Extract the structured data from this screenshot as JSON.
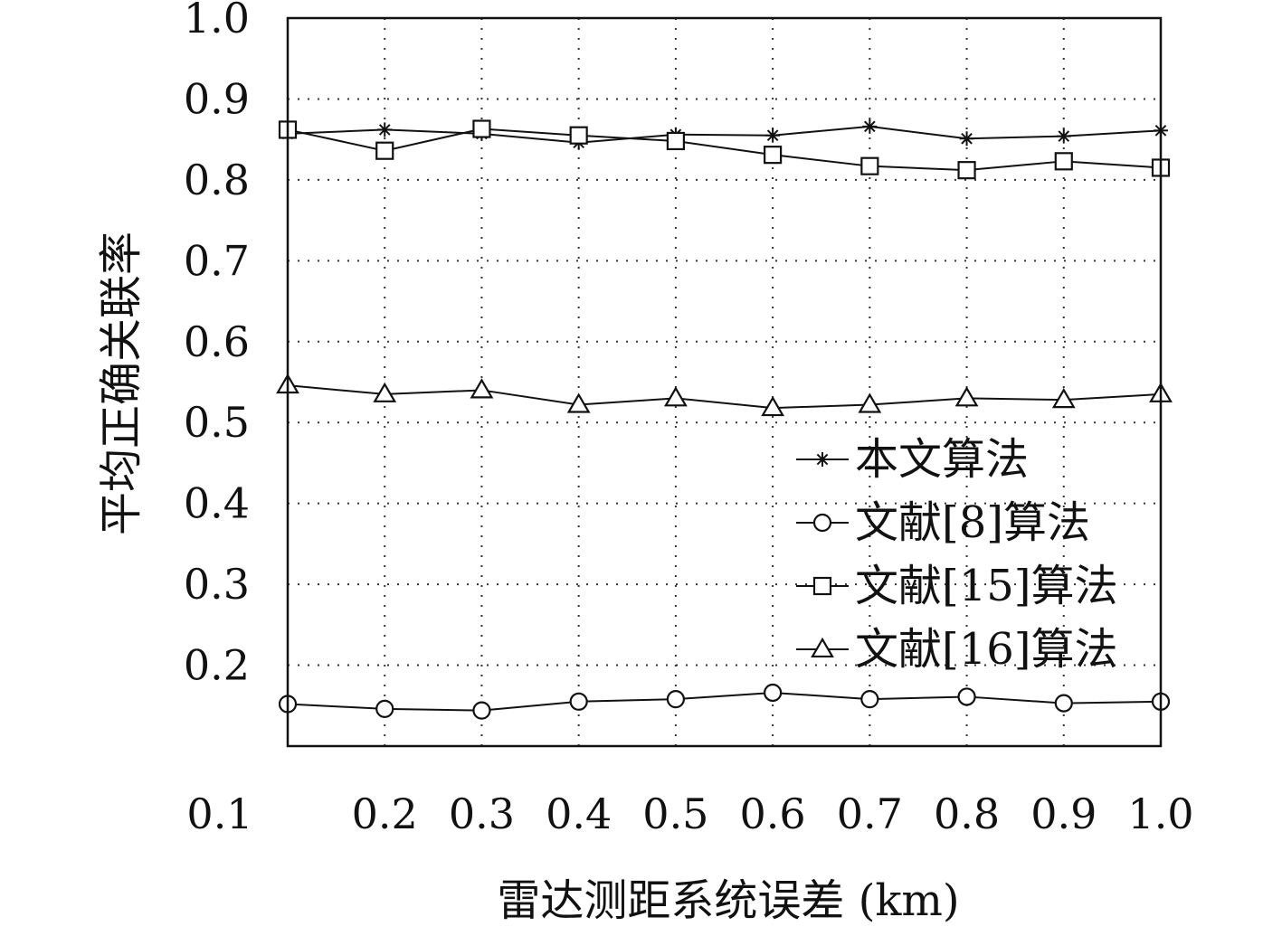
{
  "chart_data": {
    "type": "line",
    "xlabel": "雷达测距系统误差 (km)",
    "ylabel": "平均正确关联率",
    "x": [
      0.1,
      0.2,
      0.3,
      0.4,
      0.5,
      0.6,
      0.7,
      0.8,
      0.9,
      1.0
    ],
    "x_tick_labels": [
      "0.1",
      "0.2",
      "0.3",
      "0.4",
      "0.5",
      "0.6",
      "0.7",
      "0.8",
      "0.9",
      "1.0"
    ],
    "y_tick_labels": [
      "1.0",
      "0.9",
      "0.8",
      "0.7",
      "0.6",
      "0.5",
      "0.4",
      "0.3",
      "0.2"
    ],
    "y_ticks": [
      1.0,
      0.9,
      0.8,
      0.7,
      0.6,
      0.5,
      0.4,
      0.3,
      0.2
    ],
    "ylim": [
      0.1,
      1.0
    ],
    "grid": true,
    "legend_position": "middle-right",
    "series": [
      {
        "name": "本文算法",
        "marker": "asterisk",
        "values": [
          0.857,
          0.862,
          0.857,
          0.846,
          0.856,
          0.855,
          0.866,
          0.851,
          0.854,
          0.861
        ]
      },
      {
        "name": "文献[8]算法",
        "marker": "circle",
        "values": [
          0.152,
          0.146,
          0.144,
          0.155,
          0.158,
          0.166,
          0.158,
          0.161,
          0.153,
          0.155
        ]
      },
      {
        "name": "文献[15]算法",
        "marker": "square",
        "values": [
          0.862,
          0.836,
          0.863,
          0.855,
          0.848,
          0.831,
          0.817,
          0.812,
          0.823,
          0.815
        ]
      },
      {
        "name": "文献[16]算法",
        "marker": "triangle",
        "values": [
          0.546,
          0.535,
          0.54,
          0.522,
          0.53,
          0.518,
          0.522,
          0.53,
          0.528,
          0.535
        ]
      }
    ],
    "colors": {
      "line": "#111111",
      "grid": "#333333",
      "background": "#ffffff"
    }
  }
}
